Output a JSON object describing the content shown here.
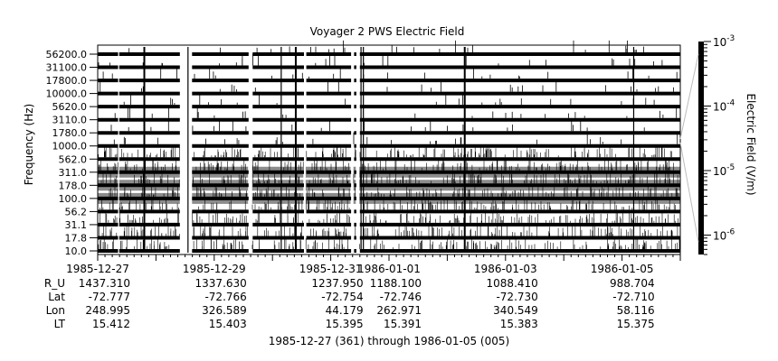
{
  "chart_data": {
    "type": "line",
    "title": "Voyager 2 PWS Electric Field",
    "ylabel": "Frequency (Hz)",
    "colorbar_label": "Electric Field (V/m)",
    "footer": "1985-12-27 (361) through 1986-01-05 (005)",
    "channels": [
      "56200.0",
      "31100.0",
      "17800.0",
      "10000.0",
      "5620.0",
      "3110.0",
      "1780.0",
      "1000.0",
      "562.0",
      "311.0",
      "178.0",
      "100.0",
      "56.2",
      "31.1",
      "17.8",
      "10.0"
    ],
    "x_range": [
      "1985-12-27",
      "1986-01-06"
    ],
    "x_ticks": [
      {
        "label": "1985-12-27",
        "day": 0
      },
      {
        "label": "1985-12-29",
        "day": 2
      },
      {
        "label": "1985-12-31",
        "day": 4
      },
      {
        "label": "1986-01-01",
        "day": 5
      },
      {
        "label": "1986-01-03",
        "day": 7
      },
      {
        "label": "1986-01-05",
        "day": 9
      }
    ],
    "colorbar_ticks": [
      {
        "mant": "10",
        "exp": "-3",
        "value": 0.001
      },
      {
        "mant": "10",
        "exp": "-4",
        "value": 0.0001
      },
      {
        "mant": "10",
        "exp": "-5",
        "value": 1e-05
      },
      {
        "mant": "10",
        "exp": "-6",
        "value": 1e-06
      }
    ],
    "colorbar_range": [
      5e-07,
      0.001
    ],
    "ephemeris_rows": [
      {
        "name": "R_U",
        "values": [
          "1437.310",
          "1337.630",
          "1237.950",
          "1188.100",
          "1088.410",
          "988.704"
        ]
      },
      {
        "name": "Lat",
        "values": [
          "-72.777",
          "-72.766",
          "-72.754",
          "-72.746",
          "-72.730",
          "-72.710"
        ]
      },
      {
        "name": "Lon",
        "values": [
          "248.995",
          "326.589",
          "44.179",
          "262.971",
          "340.549",
          "58.116"
        ]
      },
      {
        "name": "LT",
        "values": [
          "15.412",
          "15.403",
          "15.395",
          "15.391",
          "15.383",
          "15.375"
        ]
      }
    ],
    "data_gaps_days": [
      [
        0.35,
        0.37
      ],
      [
        1.41,
        1.62
      ],
      [
        2.58,
        2.65
      ],
      [
        3.53,
        3.57
      ],
      [
        4.34,
        4.39
      ],
      [
        4.43,
        4.49
      ]
    ],
    "grid": false,
    "legend": "colorbar-right"
  }
}
